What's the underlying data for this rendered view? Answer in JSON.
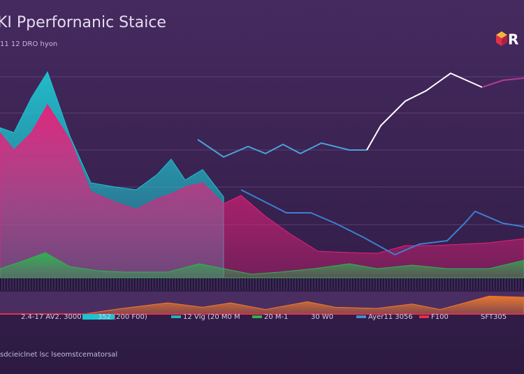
{
  "chart_data": [
    {
      "type": "area",
      "title": "KI Pperfornanic Staice",
      "subtitle": "11 12 DRO hyon",
      "brand": "R",
      "xlim": [
        0,
        750
      ],
      "ylim": [
        0,
        340
      ],
      "series": [
        {
          "color": "#1fc3cf",
          "fill": true,
          "x": [
            0,
            20,
            45,
            68,
            100,
            130,
            165,
            195,
            225,
            245,
            265,
            290,
            320
          ],
          "values": [
            215,
            208,
            258,
            295,
            203,
            136,
            130,
            126,
            148,
            170,
            140,
            155,
            116
          ]
        },
        {
          "color": "#e8207a",
          "fill": true,
          "x": [
            0,
            20,
            45,
            68,
            100,
            130,
            165,
            195,
            225,
            245,
            265,
            290,
            320,
            345,
            380,
            415,
            455,
            500,
            540,
            580,
            620,
            660,
            700,
            750
          ],
          "values": [
            208,
            183,
            208,
            248,
            198,
            123,
            108,
            98,
            113,
            120,
            130,
            136,
            106,
            118,
            88,
            63,
            38,
            36,
            35,
            46,
            46,
            48,
            50,
            56
          ]
        },
        {
          "color": "#2fb34f",
          "fill": true,
          "x": [
            0,
            30,
            65,
            100,
            140,
            180,
            240,
            285,
            320,
            360,
            400,
            450,
            500,
            540,
            590,
            640,
            700,
            750
          ],
          "values": [
            13,
            23,
            36,
            16,
            10,
            8,
            8,
            20,
            13,
            5,
            8,
            13,
            20,
            13,
            18,
            13,
            13,
            25
          ]
        },
        {
          "color": "#4aa3d8",
          "fill": false,
          "x": [
            283,
            320,
            355,
            380,
            405,
            430,
            460,
            500,
            525
          ],
          "values": [
            198,
            173,
            188,
            178,
            191,
            178,
            193,
            183,
            183
          ]
        },
        {
          "color": "#ffffff",
          "fill": false,
          "x": [
            525,
            545,
            580,
            610,
            645,
            690
          ],
          "values": [
            183,
            218,
            253,
            268,
            293,
            273
          ]
        },
        {
          "color": "#b23a9a",
          "fill": false,
          "x": [
            690,
            720,
            750
          ],
          "values": [
            273,
            283,
            286
          ]
        },
        {
          "color": "#3d7fd0",
          "fill": false,
          "x": [
            345,
            410,
            445,
            480,
            520,
            565,
            600,
            640,
            665,
            680,
            720,
            750
          ],
          "values": [
            126,
            93,
            93,
            78,
            58,
            33,
            48,
            53,
            78,
            95,
            78,
            73
          ]
        }
      ],
      "annotations": [
        {
          "text": "2.4-17 AV2. 3000"
        },
        {
          "text": "352 (200 F00)"
        },
        {
          "text": "12 Vlg (20 M0 M",
          "color": "#1fb3b8"
        },
        {
          "text": "20 M-1",
          "color": "#2fb34f"
        },
        {
          "text": "30 W0"
        },
        {
          "text": "Ayer11 3056",
          "color": "#3d8fd0"
        },
        {
          "text": "F100",
          "color": "#e0304a"
        },
        {
          "text": "SFT305"
        }
      ],
      "footer": "sdcieiclnet lsc lseomstcematorsal"
    },
    {
      "type": "area",
      "xlim": [
        0,
        750
      ],
      "ylim": [
        0,
        40
      ],
      "series": [
        {
          "color": "#f07a2a",
          "fill": true,
          "x": [
            0,
            120,
            175,
            240,
            290,
            330,
            380,
            440,
            480,
            540,
            590,
            630,
            700,
            750
          ],
          "values": [
            0,
            0,
            10,
            20,
            12,
            20,
            8,
            22,
            12,
            10,
            18,
            8,
            32,
            30
          ]
        }
      ]
    }
  ]
}
